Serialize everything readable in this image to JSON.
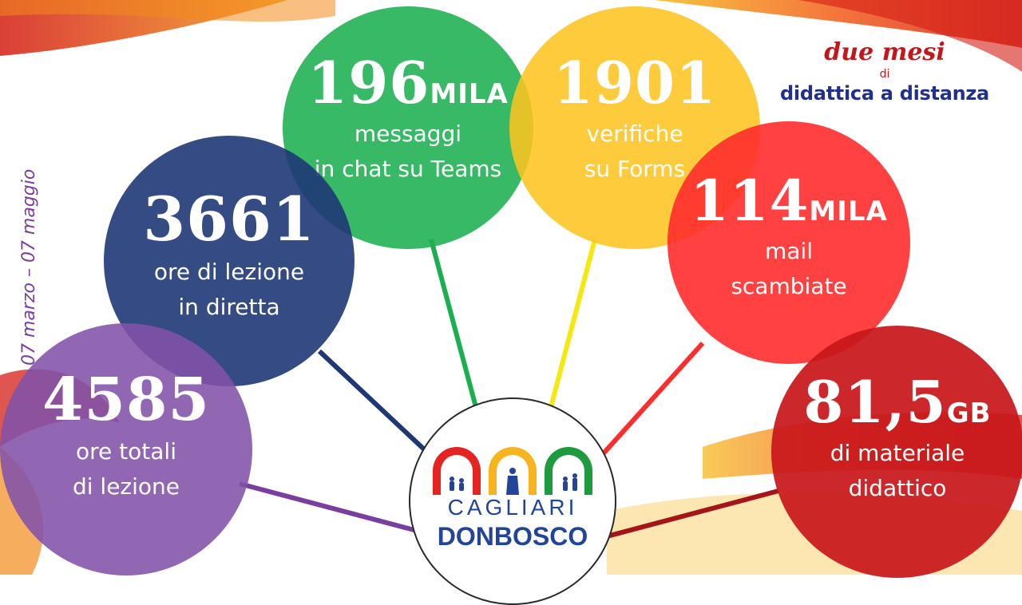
{
  "side_date": "07 marzo – 07 maggio",
  "title": {
    "line1": "due mesi",
    "line2": "di",
    "line3": "didattica a distanza"
  },
  "stats": [
    {
      "number": "4585",
      "unit": "",
      "line1": "ore totali",
      "line2": "di lezione",
      "color": "#8252AA"
    },
    {
      "number": "3661",
      "unit": "",
      "line1": "ore di lezione",
      "line2": "in diretta",
      "color": "#1E3776"
    },
    {
      "number": "196",
      "unit": "MILA",
      "line1": "messaggi",
      "line2": "in chat su Teams",
      "color": "#1BAF50"
    },
    {
      "number": "1901",
      "unit": "",
      "line1": "verifiche",
      "line2": "su Forms",
      "color": "#FDC420"
    },
    {
      "number": "114",
      "unit": "MILA",
      "line1": "mail",
      "line2": "scambiate",
      "color": "#FF2C2C"
    },
    {
      "number": "81,5",
      "unit": "GB",
      "line1": "di materiale",
      "line2": "didattico",
      "color": "#C8161A"
    }
  ],
  "logo": {
    "line1": "CAGLIARI",
    "line2": "DONBOSCO"
  }
}
